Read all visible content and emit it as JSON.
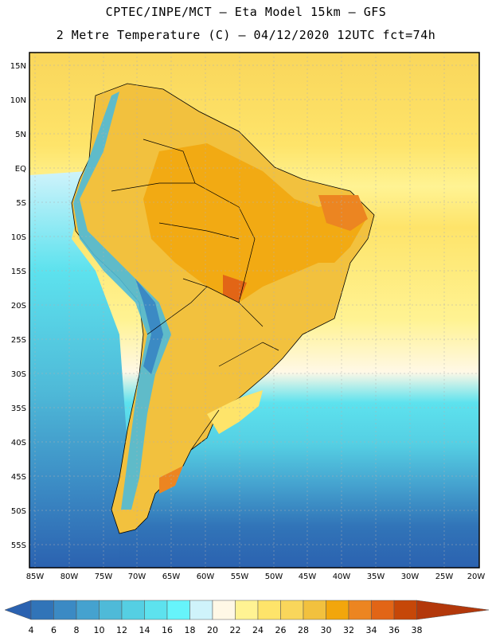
{
  "header": {
    "line1": "CPTEC/INPE/MCT –  Eta Model 15km – GFS",
    "line2": "2 Metre Temperature (C) – 04/12/2020 12UTC fct=74h"
  },
  "axes": {
    "lat_labels": [
      "15N",
      "10N",
      "5N",
      "EQ",
      "5S",
      "10S",
      "15S",
      "20S",
      "25S",
      "30S",
      "35S",
      "40S",
      "45S",
      "50S",
      "55S"
    ],
    "lon_labels": [
      "85W",
      "80W",
      "75W",
      "70W",
      "65W",
      "60W",
      "55W",
      "50W",
      "45W",
      "40W",
      "35W",
      "30W",
      "25W",
      "20W"
    ]
  },
  "colorbar": {
    "ticks": [
      "4",
      "6",
      "8",
      "10",
      "12",
      "14",
      "16",
      "18",
      "20",
      "22",
      "24",
      "26",
      "28",
      "30",
      "32",
      "34",
      "36",
      "38"
    ],
    "colors": [
      "#2b62b0",
      "#3174b8",
      "#3b8ac4",
      "#45a2cf",
      "#4fbad8",
      "#55cfe3",
      "#5de2ee",
      "#66f4fb",
      "#cff3fb",
      "#fff8e6",
      "#fff393",
      "#fee46a",
      "#f9d65b",
      "#f2c13e",
      "#f2a60c",
      "#ec8521",
      "#e26516",
      "#c64708",
      "#b3380b"
    ]
  },
  "map_data": {
    "region": "South America",
    "variable": "2 Metre Temperature",
    "units": "C"
  }
}
